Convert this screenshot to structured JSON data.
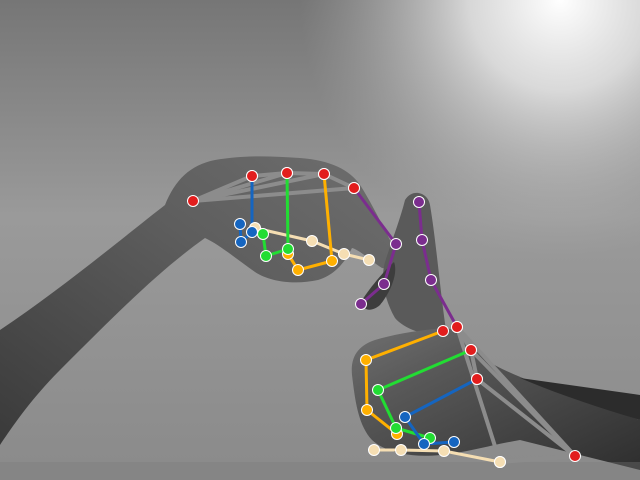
{
  "scene": {
    "description_kind": "grayscale photo of two hands with colored hand-pose keypoint skeleton overlay"
  },
  "skeleton_colors": {
    "palm": "#8c8c8c",
    "thumb": "#f5deb3",
    "index": "#ffb000",
    "middle": "#22dd33",
    "ring": "#1565c0",
    "pinky": "#7b2d8e",
    "joint_red": "#e21d1d"
  }
}
